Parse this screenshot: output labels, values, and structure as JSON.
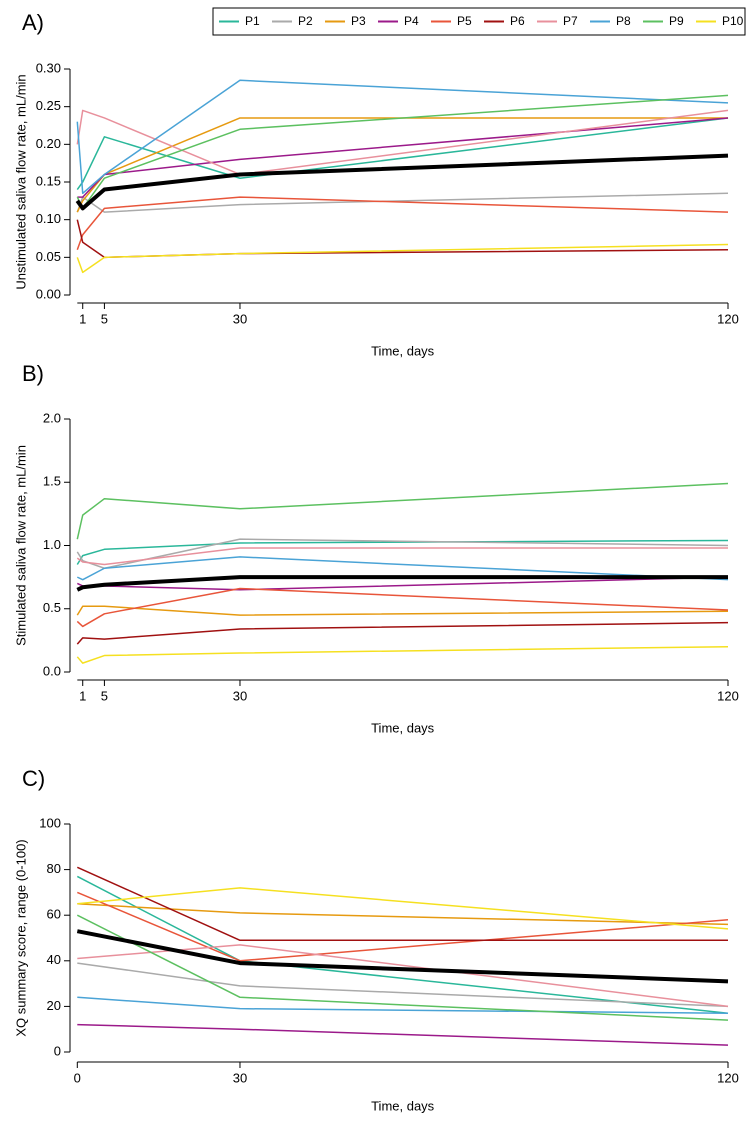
{
  "chart_data": [
    {
      "type": "line",
      "title": "A)",
      "legend": "top-right",
      "x_label": "Time, days",
      "y_label": "Unstimulated saliva flow rate, mL/min",
      "x": [
        0,
        1,
        5,
        30,
        120
      ],
      "xlim": [
        0,
        120
      ],
      "xticks": [
        1,
        5,
        30,
        120
      ],
      "ylim": [
        0,
        0.3
      ],
      "yticks": [
        {
          "value": 0,
          "label": "0.00"
        },
        {
          "value": 0.05,
          "label": "0.05"
        },
        {
          "value": 0.1,
          "label": "0.10"
        },
        {
          "value": 0.15,
          "label": "0.15"
        },
        {
          "value": 0.2,
          "label": "0.20"
        },
        {
          "value": 0.25,
          "label": "0.25"
        },
        {
          "value": 0.3,
          "label": "0.30"
        }
      ],
      "series": [
        {
          "name": "P1",
          "color": "#2ab79a",
          "values": [
            0.14,
            0.15,
            0.21,
            0.155,
            0.235
          ]
        },
        {
          "name": "P2",
          "color": "#aaaaaa",
          "values": [
            0.11,
            0.13,
            0.11,
            0.12,
            0.135
          ]
        },
        {
          "name": "P3",
          "color": "#e69a10",
          "values": [
            0.11,
            0.125,
            0.16,
            0.235,
            0.235
          ]
        },
        {
          "name": "P4",
          "color": "#9b1a8a",
          "values": [
            0.13,
            0.13,
            0.16,
            0.18,
            0.235
          ]
        },
        {
          "name": "P5",
          "color": "#e8553a",
          "values": [
            0.06,
            0.08,
            0.115,
            0.13,
            0.11
          ]
        },
        {
          "name": "P6",
          "color": "#a01010",
          "values": [
            0.1,
            0.07,
            0.05,
            0.055,
            0.06
          ]
        },
        {
          "name": "P7",
          "color": "#e8909c",
          "values": [
            0.2,
            0.245,
            0.235,
            0.16,
            0.245
          ]
        },
        {
          "name": "P8",
          "color": "#4aa3d6",
          "values": [
            0.23,
            0.135,
            0.16,
            0.285,
            0.255
          ]
        },
        {
          "name": "P9",
          "color": "#5cc060",
          "values": [
            0.13,
            0.115,
            0.155,
            0.22,
            0.265
          ]
        },
        {
          "name": "P10",
          "color": "#f5e020",
          "values": [
            0.05,
            0.03,
            0.05,
            0.055,
            0.067
          ]
        },
        {
          "color": "#000000",
          "line_width": 4,
          "values": [
            0.125,
            0.115,
            0.14,
            0.16,
            0.185
          ]
        }
      ]
    },
    {
      "type": "line",
      "title": "B)",
      "x_label": "Time, days",
      "y_label": "Stimulated saliva flow rate, mL/min",
      "x": [
        0,
        1,
        5,
        30,
        120
      ],
      "xlim": [
        0,
        120
      ],
      "xticks": [
        1,
        5,
        30,
        120
      ],
      "ylim": [
        0,
        2
      ],
      "yticks": [
        {
          "value": 0,
          "label": "0.0"
        },
        {
          "value": 0.5,
          "label": "0.5"
        },
        {
          "value": 1,
          "label": "1.0"
        },
        {
          "value": 1.5,
          "label": "1.5"
        },
        {
          "value": 2,
          "label": "2.0"
        }
      ],
      "series": [
        {
          "name": "P1",
          "color": "#2ab79a",
          "values": [
            0.85,
            0.92,
            0.97,
            1.02,
            1.04
          ]
        },
        {
          "name": "P2",
          "color": "#aaaaaa",
          "values": [
            0.95,
            0.88,
            0.82,
            1.05,
            1.0
          ]
        },
        {
          "name": "P3",
          "color": "#e69a10",
          "values": [
            0.45,
            0.52,
            0.52,
            0.45,
            0.48
          ]
        },
        {
          "name": "P4",
          "color": "#9b1a8a",
          "values": [
            0.7,
            0.68,
            0.68,
            0.65,
            0.75
          ]
        },
        {
          "name": "P5",
          "color": "#e8553a",
          "values": [
            0.4,
            0.36,
            0.46,
            0.66,
            0.49
          ]
        },
        {
          "name": "P6",
          "color": "#a01010",
          "values": [
            0.22,
            0.27,
            0.26,
            0.34,
            0.39
          ]
        },
        {
          "name": "P7",
          "color": "#e8909c",
          "values": [
            0.9,
            0.87,
            0.85,
            0.98,
            0.98
          ]
        },
        {
          "name": "P8",
          "color": "#4aa3d6",
          "values": [
            0.75,
            0.73,
            0.82,
            0.91,
            0.73
          ]
        },
        {
          "name": "P9",
          "color": "#5cc060",
          "values": [
            1.05,
            1.24,
            1.37,
            1.29,
            1.49
          ]
        },
        {
          "name": "P10",
          "color": "#f5e020",
          "values": [
            0.12,
            0.07,
            0.13,
            0.15,
            0.2
          ]
        },
        {
          "color": "#000000",
          "line_width": 4,
          "values": [
            0.65,
            0.67,
            0.69,
            0.75,
            0.75
          ]
        }
      ]
    },
    {
      "type": "line",
      "title": "C)",
      "x_label": "Time, days",
      "y_label": "XQ summary score, range (0-100)",
      "x": [
        0,
        30,
        120
      ],
      "xlim": [
        0,
        120
      ],
      "xticks": [
        0,
        30,
        120
      ],
      "ylim": [
        0,
        100
      ],
      "yticks": [
        0,
        20,
        40,
        60,
        80,
        100
      ],
      "series": [
        {
          "name": "P1",
          "color": "#2ab79a",
          "values": [
            77,
            40,
            17
          ]
        },
        {
          "name": "P2",
          "color": "#aaaaaa",
          "values": [
            39,
            29,
            20
          ]
        },
        {
          "name": "P3",
          "color": "#e69a10",
          "values": [
            65,
            61,
            56
          ]
        },
        {
          "name": "P4",
          "color": "#9b1a8a",
          "values": [
            12,
            10,
            3
          ]
        },
        {
          "name": "P5",
          "color": "#e8553a",
          "values": [
            70,
            40,
            58
          ]
        },
        {
          "name": "P6",
          "color": "#a01010",
          "values": [
            81,
            49,
            49
          ]
        },
        {
          "name": "P7",
          "color": "#e8909c",
          "values": [
            41,
            47,
            20
          ]
        },
        {
          "name": "P8",
          "color": "#4aa3d6",
          "values": [
            24,
            19,
            17
          ]
        },
        {
          "name": "P9",
          "color": "#5cc060",
          "values": [
            60,
            24,
            14
          ]
        },
        {
          "name": "P10",
          "color": "#f5e020",
          "values": [
            65,
            72,
            54
          ]
        },
        {
          "color": "#000000",
          "line_width": 4,
          "values": [
            53,
            39,
            31
          ]
        }
      ]
    }
  ]
}
